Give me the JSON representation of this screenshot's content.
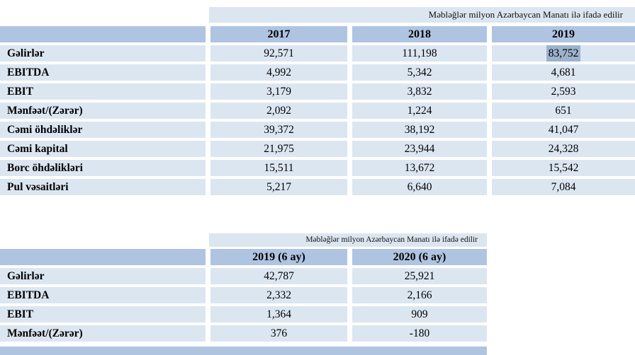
{
  "page": {
    "background": "#ffffff"
  },
  "colors": {
    "header_bg": "#afc4e1",
    "row_bg": "#dce6f1",
    "note_bg": "#dce6f1",
    "selection_highlight_bg": "#9cb3cc",
    "text": "#000000"
  },
  "tables": [
    {
      "name": "annual-financials",
      "note": "Məbləğlər milyon Azərbaycan Manatı ilə ifadə edilir",
      "columns": [
        "",
        "2017",
        "2018",
        "2019"
      ],
      "rows": [
        {
          "label": "Gəlirlər",
          "values": [
            "92,571",
            "111,198",
            "83,752"
          ],
          "highlight": [
            false,
            false,
            true
          ]
        },
        {
          "label": "EBITDA",
          "values": [
            "4,992",
            "5,342",
            "4,681"
          ]
        },
        {
          "label": "EBIT",
          "values": [
            "3,179",
            "3,832",
            "2,593"
          ]
        },
        {
          "label": "Mənfəət/(Zərər)",
          "values": [
            "2,092",
            "1,224",
            "651"
          ]
        },
        {
          "label": "Cəmi öhdəliklər",
          "values": [
            "39,372",
            "38,192",
            "41,047"
          ]
        },
        {
          "label": "Cəmi kapital",
          "values": [
            "21,975",
            "23,944",
            "24,328"
          ]
        },
        {
          "label": "Borc öhdəlikləri",
          "values": [
            "15,511",
            "13,672",
            "15,542"
          ]
        },
        {
          "label": "Pul vəsaitləri",
          "values": [
            "5,217",
            "6,640",
            "7,084"
          ]
        }
      ]
    },
    {
      "name": "half-year-financials",
      "note": "Məbləğlər milyon Azərbaycan Manatı ilə ifadə edilir",
      "columns": [
        "",
        "2019 (6 ay)",
        "2020 (6 ay)"
      ],
      "rows": [
        {
          "label": "Gəlirlər",
          "values": [
            "42,787",
            "25,921"
          ]
        },
        {
          "label": "EBITDA",
          "values": [
            "2,332",
            "2,166"
          ]
        },
        {
          "label": "EBIT",
          "values": [
            "1,364",
            "909"
          ]
        },
        {
          "label": "Mənfəət/(Zərər)",
          "values": [
            "376",
            "-180"
          ]
        }
      ]
    }
  ],
  "partial_next_table_header_visible": true
}
